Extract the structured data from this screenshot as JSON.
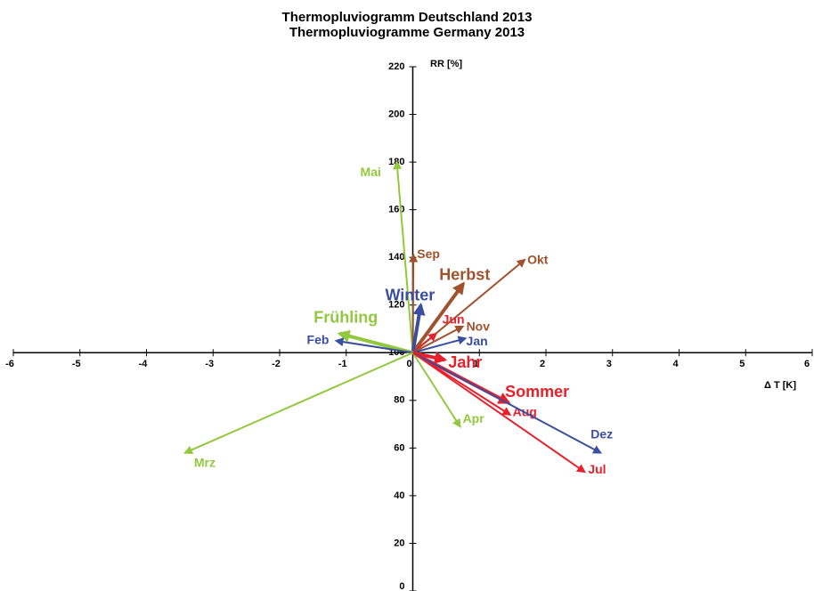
{
  "chart_data": {
    "type": "vector",
    "title": [
      "Thermopluviogramm Deutschland 2013",
      "Thermopluviogramme Germany 2013"
    ],
    "xlabel": "Δ T [K]",
    "ylabel": "RR [%]",
    "origin": [
      0,
      100
    ],
    "xlim": [
      -6,
      6
    ],
    "xticks": [
      -6,
      -5,
      -4,
      -3,
      -2,
      -1,
      0,
      1,
      2,
      3,
      4,
      5,
      6
    ],
    "ylim": [
      0,
      220
    ],
    "yticks": [
      0,
      20,
      40,
      60,
      80,
      100,
      120,
      140,
      160,
      180,
      200,
      220
    ],
    "series": [
      {
        "name": "Mai",
        "color": "#92c83e",
        "line_width": 2,
        "x": -0.24,
        "value": 180
      },
      {
        "name": "Sep",
        "color": "#a0522d",
        "line_width": 2,
        "x": 0.01,
        "value": 141
      },
      {
        "name": "Okt",
        "color": "#a0522d",
        "line_width": 2,
        "x": 1.68,
        "value": 139
      },
      {
        "name": "Herbst",
        "color": "#a0522d",
        "line_width": 4,
        "x": 0.76,
        "value": 129
      },
      {
        "name": "Winter",
        "color": "#3a4ea0",
        "line_width": 4,
        "x": 0.12,
        "value": 120
      },
      {
        "name": "Frühling",
        "color": "#92c83e",
        "line_width": 4,
        "x": -1.1,
        "value": 108
      },
      {
        "name": "Feb",
        "color": "#3a4ea0",
        "line_width": 2,
        "x": -1.15,
        "value": 105
      },
      {
        "name": "Jun",
        "color": "#e8202a",
        "line_width": 2,
        "x": 0.35,
        "value": 108
      },
      {
        "name": "Nov",
        "color": "#a0522d",
        "line_width": 2,
        "x": 0.75,
        "value": 111
      },
      {
        "name": "Jan",
        "color": "#3a4ea0",
        "line_width": 2,
        "x": 0.79,
        "value": 106
      },
      {
        "name": "Jahr",
        "color": "#e8202a",
        "line_width": 4,
        "x": 0.48,
        "value": 97
      },
      {
        "name": "Sommer",
        "color": "#e8202a",
        "line_width": 4,
        "x": 1.44,
        "value": 79
      },
      {
        "name": "Aug",
        "color": "#e8202a",
        "line_width": 2,
        "x": 1.46,
        "value": 74
      },
      {
        "name": "Apr",
        "color": "#92c83e",
        "line_width": 2,
        "x": 0.71,
        "value": 69
      },
      {
        "name": "Dez",
        "color": "#3a4ea0",
        "line_width": 2,
        "x": 2.82,
        "value": 58
      },
      {
        "name": "Jul",
        "color": "#e8202a",
        "line_width": 2,
        "x": 2.58,
        "value": 50
      },
      {
        "name": "Mrz",
        "color": "#92c83e",
        "line_width": 2,
        "x": -3.42,
        "value": 58
      }
    ]
  }
}
